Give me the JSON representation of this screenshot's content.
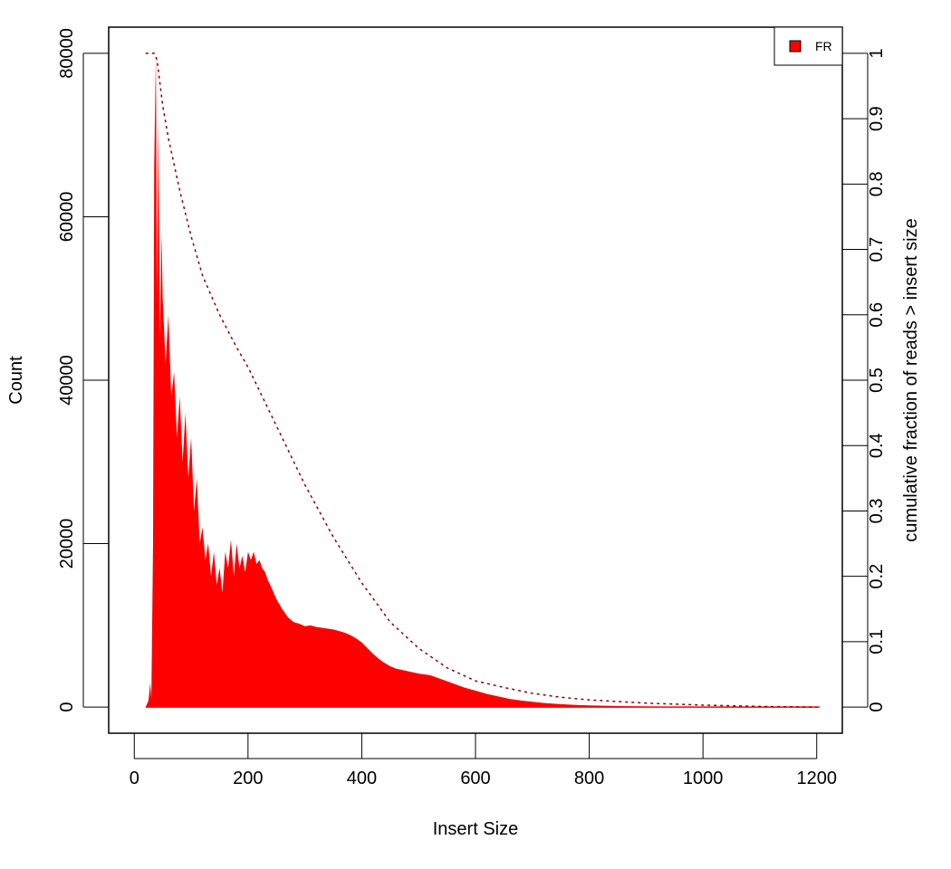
{
  "colors": {
    "bars": "#ff0000",
    "cumulative_line": "#8b0000",
    "axis": "#000000"
  },
  "chart_data": {
    "type": "bar",
    "title": "",
    "xlabel": "Insert Size",
    "ylabel": "Count",
    "y2label": "cumulative fraction of reads > insert size",
    "xlim": [
      -45,
      1245
    ],
    "ylim": [
      -3200,
      83200
    ],
    "y2lim": [
      -0.04,
      1.04
    ],
    "xticks": [
      0,
      200,
      400,
      600,
      800,
      1000,
      1200
    ],
    "yticks": [
      0,
      20000,
      40000,
      60000,
      80000
    ],
    "y2ticks": [
      0,
      0.1,
      0.2,
      0.3,
      0.4,
      0.5,
      0.6,
      0.7,
      0.8,
      0.9,
      1
    ],
    "grid": false,
    "legend": {
      "position": "top-right",
      "entries": [
        "FR"
      ]
    },
    "series": [
      {
        "type": "histogram",
        "axis": "left",
        "x": [
          20,
          25,
          28,
          30,
          33,
          35,
          38,
          40,
          42,
          45,
          48,
          50,
          55,
          60,
          65,
          70,
          75,
          80,
          85,
          90,
          95,
          100,
          105,
          110,
          115,
          120,
          125,
          130,
          135,
          140,
          145,
          150,
          155,
          160,
          165,
          170,
          175,
          180,
          185,
          190,
          195,
          200,
          205,
          210,
          215,
          220,
          225,
          230,
          235,
          240,
          245,
          250,
          260,
          270,
          280,
          290,
          300,
          310,
          320,
          330,
          340,
          350,
          360,
          370,
          380,
          390,
          400,
          410,
          420,
          430,
          440,
          450,
          460,
          480,
          500,
          520,
          540,
          560,
          580,
          600,
          620,
          640,
          660,
          680,
          700,
          720,
          740,
          760,
          780,
          800,
          850,
          900,
          950,
          1000,
          1050,
          1100,
          1150,
          1205
        ],
        "values": [
          0,
          800,
          3000,
          1000,
          20000,
          66000,
          80000,
          50000,
          72000,
          45000,
          58000,
          50000,
          42000,
          48000,
          38000,
          41000,
          33000,
          38000,
          30000,
          36000,
          28000,
          33000,
          24000,
          28000,
          20000,
          22000,
          18000,
          20000,
          16000,
          19000,
          15000,
          17000,
          14000,
          19000,
          17000,
          20500,
          16000,
          20000,
          17000,
          18500,
          16500,
          19000,
          18000,
          19000,
          17500,
          18000,
          17000,
          16500,
          15500,
          14800,
          14000,
          13200,
          12000,
          11000,
          10400,
          10200,
          9900,
          10000,
          9800,
          9700,
          9600,
          9500,
          9300,
          9100,
          8800,
          8400,
          7900,
          7200,
          6500,
          5900,
          5400,
          5000,
          4700,
          4400,
          4100,
          3900,
          3400,
          2900,
          2400,
          2000,
          1600,
          1300,
          1000,
          800,
          650,
          500,
          400,
          320,
          250,
          200,
          120,
          80,
          50,
          30,
          20,
          15,
          10,
          0
        ]
      },
      {
        "type": "line",
        "style": "dashed",
        "axis": "right",
        "x": [
          20,
          35,
          40,
          50,
          60,
          80,
          100,
          120,
          150,
          180,
          200,
          250,
          300,
          350,
          400,
          450,
          500,
          550,
          600,
          650,
          700,
          750,
          800,
          900,
          1000,
          1100,
          1200
        ],
        "values": [
          1.0,
          1.0,
          0.99,
          0.92,
          0.87,
          0.79,
          0.72,
          0.66,
          0.6,
          0.55,
          0.52,
          0.43,
          0.34,
          0.26,
          0.19,
          0.13,
          0.09,
          0.06,
          0.04,
          0.03,
          0.021,
          0.015,
          0.011,
          0.006,
          0.003,
          0.001,
          0.0
        ]
      }
    ]
  }
}
